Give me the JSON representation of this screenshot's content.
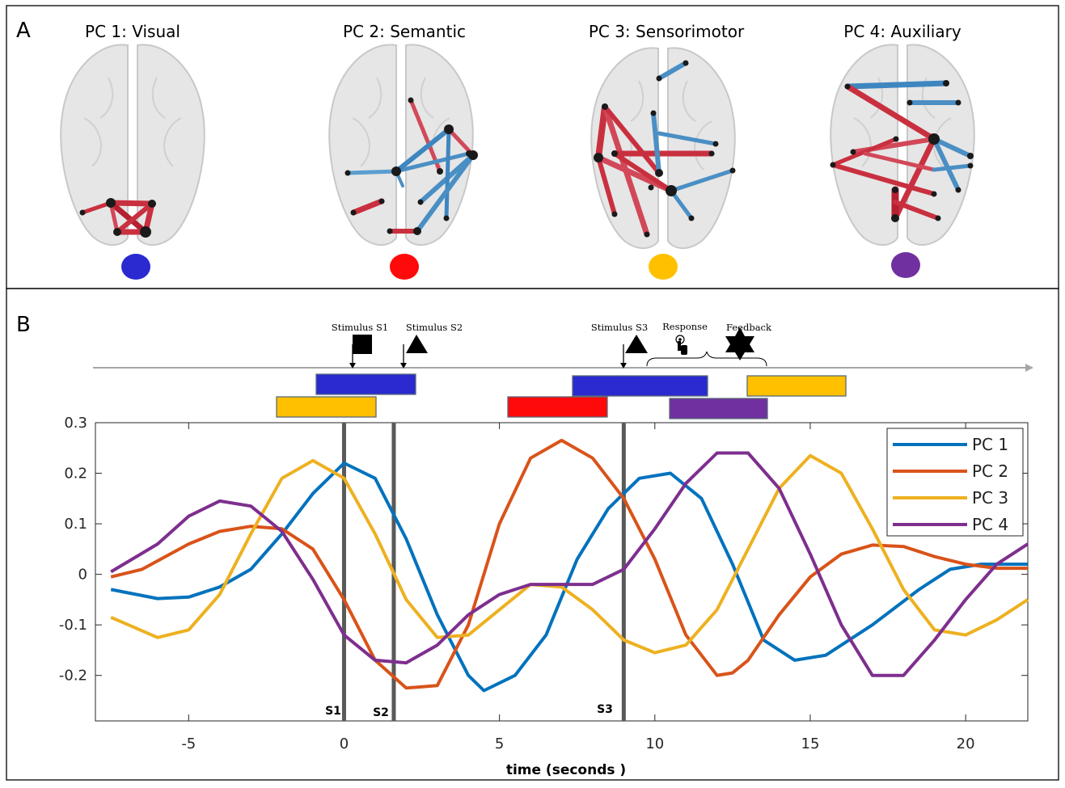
{
  "figure": {
    "panel_a": {
      "letter": "A",
      "components": [
        {
          "title": "PC 1: Visual",
          "color": "#2a2ad0"
        },
        {
          "title": "PC 2: Semantic",
          "color": "#ff0a0a"
        },
        {
          "title": "PC 3: Sensorimotor",
          "color": "#ffc000"
        },
        {
          "title": "PC 4: Auxiliary",
          "color": "#7030a0"
        }
      ]
    },
    "panel_b": {
      "letter": "B",
      "events": [
        {
          "label": "Stimulus S1",
          "icon": "square-icon"
        },
        {
          "label": "Stimulus S2",
          "icon": "triangle-icon"
        },
        {
          "label": "Stimulus S3",
          "icon": "triangle-icon"
        },
        {
          "label": "Response",
          "icon": "hand-press-icon"
        },
        {
          "label": "Feedback",
          "icon": "star-icon"
        }
      ],
      "stimulus_markers": [
        "S1",
        "S2",
        "S3"
      ]
    }
  },
  "chart_data": {
    "type": "line",
    "xlabel": "time (seconds )",
    "ylabel": "",
    "xlim": [
      -8,
      22
    ],
    "ylim": [
      -0.29,
      0.3
    ],
    "xticks": [
      -5,
      0,
      5,
      10,
      15,
      20
    ],
    "xtick_labels": [
      "-5",
      "0",
      "5",
      "10",
      "15",
      "20"
    ],
    "yticks": [
      0.3,
      0.2,
      0.1,
      0,
      -0.1,
      -0.2
    ],
    "ytick_labels": [
      "0.3",
      "0.2",
      "0.1",
      "0",
      "-0.1",
      "-0.2"
    ],
    "legend_position": "top-right",
    "stimulus_lines": [
      0,
      1.6,
      9.0
    ],
    "series": [
      {
        "name": "PC 1",
        "color": "#0072bd",
        "points": [
          [
            -7.5,
            -0.03
          ],
          [
            -6,
            -0.048
          ],
          [
            -5,
            -0.045
          ],
          [
            -4,
            -0.025
          ],
          [
            -3,
            0.01
          ],
          [
            -2,
            0.08
          ],
          [
            -1,
            0.16
          ],
          [
            0,
            0.22
          ],
          [
            1,
            0.19
          ],
          [
            2,
            0.07
          ],
          [
            3,
            -0.08
          ],
          [
            4,
            -0.2
          ],
          [
            4.5,
            -0.23
          ],
          [
            5.5,
            -0.2
          ],
          [
            6.5,
            -0.12
          ],
          [
            7.5,
            0.03
          ],
          [
            8.5,
            0.13
          ],
          [
            9.5,
            0.19
          ],
          [
            10.5,
            0.2
          ],
          [
            11.5,
            0.15
          ],
          [
            12.5,
            0.02
          ],
          [
            13.5,
            -0.13
          ],
          [
            14.5,
            -0.17
          ],
          [
            15.5,
            -0.16
          ],
          [
            17,
            -0.1
          ],
          [
            18.5,
            -0.03
          ],
          [
            19.5,
            0.01
          ],
          [
            20.5,
            0.02
          ],
          [
            22,
            0.02
          ]
        ]
      },
      {
        "name": "PC 2",
        "color": "#d95319",
        "points": [
          [
            -7.5,
            -0.005
          ],
          [
            -6.5,
            0.01
          ],
          [
            -5,
            0.06
          ],
          [
            -4,
            0.085
          ],
          [
            -3,
            0.095
          ],
          [
            -2,
            0.09
          ],
          [
            -1,
            0.05
          ],
          [
            0,
            -0.05
          ],
          [
            1,
            -0.17
          ],
          [
            2,
            -0.225
          ],
          [
            3,
            -0.22
          ],
          [
            4,
            -0.1
          ],
          [
            5,
            0.1
          ],
          [
            6,
            0.23
          ],
          [
            7,
            0.265
          ],
          [
            8,
            0.23
          ],
          [
            9,
            0.15
          ],
          [
            10,
            0.03
          ],
          [
            11,
            -0.12
          ],
          [
            12,
            -0.2
          ],
          [
            12.5,
            -0.195
          ],
          [
            13,
            -0.17
          ],
          [
            14,
            -0.08
          ],
          [
            15,
            -0.005
          ],
          [
            16,
            0.04
          ],
          [
            17,
            0.058
          ],
          [
            18,
            0.055
          ],
          [
            19,
            0.035
          ],
          [
            20,
            0.02
          ],
          [
            21,
            0.012
          ],
          [
            22,
            0.012
          ]
        ]
      },
      {
        "name": "PC 3",
        "color": "#edb120",
        "points": [
          [
            -7.5,
            -0.085
          ],
          [
            -6,
            -0.125
          ],
          [
            -5,
            -0.11
          ],
          [
            -4,
            -0.04
          ],
          [
            -3,
            0.08
          ],
          [
            -2,
            0.19
          ],
          [
            -1,
            0.225
          ],
          [
            0,
            0.19
          ],
          [
            1,
            0.08
          ],
          [
            2,
            -0.05
          ],
          [
            3,
            -0.125
          ],
          [
            4,
            -0.12
          ],
          [
            5,
            -0.07
          ],
          [
            6,
            -0.02
          ],
          [
            7,
            -0.025
          ],
          [
            8,
            -0.07
          ],
          [
            9,
            -0.13
          ],
          [
            10,
            -0.155
          ],
          [
            11,
            -0.14
          ],
          [
            12,
            -0.07
          ],
          [
            13,
            0.05
          ],
          [
            14,
            0.17
          ],
          [
            15,
            0.235
          ],
          [
            16,
            0.2
          ],
          [
            17,
            0.09
          ],
          [
            18,
            -0.03
          ],
          [
            19,
            -0.11
          ],
          [
            20,
            -0.12
          ],
          [
            21,
            -0.09
          ],
          [
            22,
            -0.05
          ]
        ]
      },
      {
        "name": "PC 4",
        "color": "#7e2f8e",
        "points": [
          [
            -7.5,
            0.005
          ],
          [
            -6,
            0.06
          ],
          [
            -5,
            0.115
          ],
          [
            -4,
            0.145
          ],
          [
            -3,
            0.135
          ],
          [
            -2,
            0.085
          ],
          [
            -1,
            -0.01
          ],
          [
            0,
            -0.12
          ],
          [
            1,
            -0.17
          ],
          [
            2,
            -0.175
          ],
          [
            3,
            -0.14
          ],
          [
            4,
            -0.08
          ],
          [
            5,
            -0.04
          ],
          [
            6,
            -0.02
          ],
          [
            7,
            -0.02
          ],
          [
            8,
            -0.02
          ],
          [
            9,
            0.01
          ],
          [
            10,
            0.09
          ],
          [
            11,
            0.18
          ],
          [
            12,
            0.24
          ],
          [
            13,
            0.24
          ],
          [
            14,
            0.17
          ],
          [
            15,
            0.04
          ],
          [
            16,
            -0.1
          ],
          [
            17,
            -0.2
          ],
          [
            18,
            -0.2
          ],
          [
            19,
            -0.13
          ],
          [
            20,
            -0.05
          ],
          [
            21,
            0.02
          ],
          [
            22,
            0.06
          ]
        ]
      }
    ]
  }
}
